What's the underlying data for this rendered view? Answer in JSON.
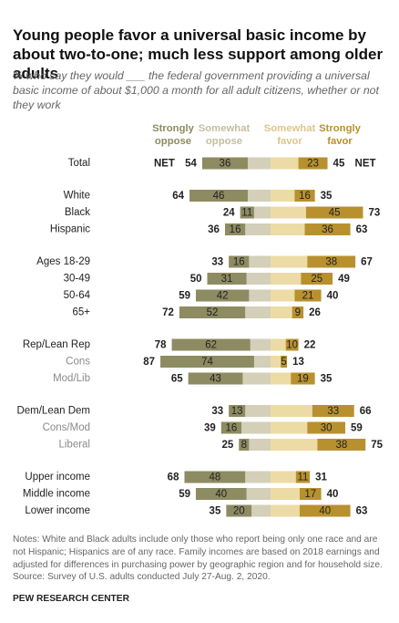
{
  "chart_data": {
    "type": "diverging_bar",
    "title": "Young people favor a universal basic income by about two-to-one; much less support among older adults",
    "subtitle": "% who say they would ___ the federal government providing a universal basic income of about $1,000 a month for all adult citizens, whether or not they work",
    "categories": [
      "Total",
      "White",
      "Black",
      "Hispanic",
      "Ages 18-29",
      "30-49",
      "50-64",
      "65+",
      "Rep/Lean Rep",
      "Cons",
      "Mod/Lib",
      "Dem/Lean Dem",
      "Cons/Mod",
      "Liberal",
      "Upper income",
      "Middle income",
      "Lower income"
    ],
    "category_colors": [
      "#222222",
      "#222222",
      "#222222",
      "#222222",
      "#222222",
      "#222222",
      "#222222",
      "#222222",
      "#222222",
      "#8a8a8a",
      "#8a8a8a",
      "#222222",
      "#8a8a8a",
      "#8a8a8a",
      "#222222",
      "#222222",
      "#222222"
    ],
    "series": [
      {
        "name": "Strongly oppose",
        "color": "#8d8b61",
        "side": "oppose",
        "labeled": true,
        "values": [
          36,
          46,
          11,
          16,
          16,
          31,
          42,
          52,
          62,
          74,
          43,
          13,
          16,
          8,
          48,
          40,
          20
        ]
      },
      {
        "name": "Somewhat oppose",
        "color": "#d3cfb8",
        "side": "oppose",
        "labeled": false,
        "values": [
          18,
          18,
          13,
          20,
          17,
          19,
          17,
          20,
          16,
          13,
          22,
          20,
          23,
          17,
          20,
          19,
          15
        ]
      },
      {
        "name": "Somewhat favor",
        "color": "#ecdba4",
        "side": "favor",
        "labeled": false,
        "values": [
          22,
          19,
          28,
          27,
          29,
          24,
          19,
          17,
          12,
          8,
          16,
          33,
          29,
          37,
          20,
          23,
          23
        ]
      },
      {
        "name": "Strongly favor",
        "color": "#b8912e",
        "side": "favor",
        "labeled": true,
        "values": [
          23,
          16,
          45,
          36,
          38,
          25,
          21,
          9,
          10,
          5,
          19,
          33,
          30,
          38,
          11,
          17,
          40
        ]
      }
    ],
    "header_colors": [
      "#8d8b61",
      "#c4bea0",
      "#dcc688",
      "#b8912e"
    ],
    "net_label": "NET",
    "net_oppose": [
      54,
      64,
      24,
      36,
      33,
      50,
      59,
      72,
      78,
      87,
      65,
      33,
      39,
      25,
      68,
      59,
      35
    ],
    "net_favor": [
      45,
      35,
      73,
      63,
      67,
      49,
      40,
      26,
      22,
      13,
      35,
      66,
      59,
      75,
      31,
      40,
      63
    ],
    "notes": "Notes: White and Black adults include only those who report being only one race and are not Hispanic; Hispanics are of any race. Family incomes are based on 2018 earnings and adjusted for differences in purchasing power by geographic region and for household size.",
    "source": "Source: Survey of U.S. adults conducted July 27-Aug. 2, 2020.",
    "credit": "PEW RESEARCH CENTER"
  }
}
